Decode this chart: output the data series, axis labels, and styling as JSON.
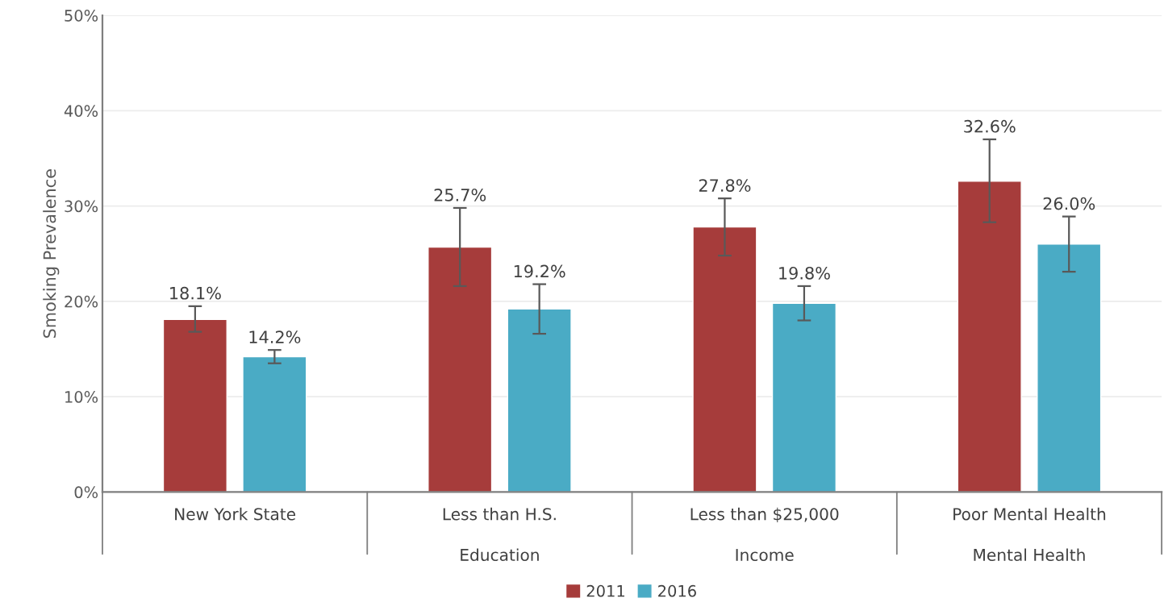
{
  "chart_data": {
    "type": "bar",
    "ylabel": "Smoking Prevalence",
    "categories": [
      "New York State",
      "Less than H.S.",
      "Less than $25,000",
      "Poor Mental Health"
    ],
    "series": [
      {
        "name": "2011",
        "color": "#a63c3b",
        "values": [
          18.1,
          25.7,
          27.8,
          32.6
        ],
        "value_labels": [
          "18.1%",
          "25.7%",
          "27.8%",
          "32.6%"
        ],
        "errors": [
          [
            16.8,
            19.5
          ],
          [
            21.6,
            29.8
          ],
          [
            24.8,
            30.8
          ],
          [
            28.3,
            37.0
          ]
        ]
      },
      {
        "name": "2016",
        "color": "#4aabc5",
        "values": [
          14.2,
          19.2,
          19.8,
          26.0
        ],
        "value_labels": [
          "14.2%",
          "19.2%",
          "19.8%",
          "26.0%"
        ],
        "errors": [
          [
            13.5,
            14.9
          ],
          [
            16.6,
            21.8
          ],
          [
            18.0,
            21.6
          ],
          [
            23.1,
            28.9
          ]
        ]
      }
    ],
    "annotations": [
      "Education",
      "Income",
      "Mental Health"
    ],
    "ylim": [
      0,
      50
    ],
    "yticks": [
      {
        "value": 0,
        "label": "0%"
      },
      {
        "value": 10,
        "label": "10%"
      },
      {
        "value": 20,
        "label": "20%"
      },
      {
        "value": 30,
        "label": "30%"
      },
      {
        "value": 40,
        "label": "40%"
      },
      {
        "value": 50,
        "label": "50%"
      }
    ],
    "grid": "y",
    "legend": "bottom"
  }
}
